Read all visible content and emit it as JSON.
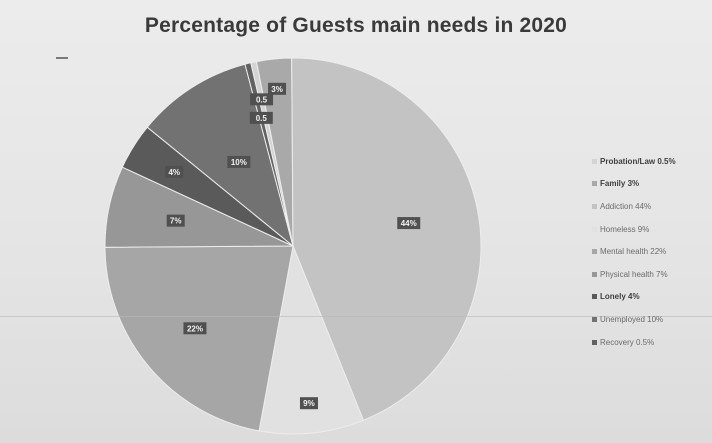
{
  "chart_data": {
    "type": "pie",
    "title": "Percentage of Guests main needs in 2020",
    "slices": [
      {
        "label": "Probation/Law 0.5%",
        "data_label": "0.5",
        "value": 0.5,
        "color": "#d4d4d4",
        "emphasis": true
      },
      {
        "label": "Family 3%",
        "data_label": "3%",
        "value": 3,
        "color": "#a9a9a9",
        "emphasis": true
      },
      {
        "label": "Addiction 44%",
        "data_label": "44%",
        "value": 44,
        "color": "#c3c3c3",
        "emphasis": false
      },
      {
        "label": "Homeless 9%",
        "data_label": "9%",
        "value": 9,
        "color": "#e1e1e1",
        "emphasis": false
      },
      {
        "label": "Mental health 22%",
        "data_label": "22%",
        "value": 22,
        "color": "#a6a6a6",
        "emphasis": false
      },
      {
        "label": "Physical health 7%",
        "data_label": "7%",
        "value": 7,
        "color": "#979797",
        "emphasis": false
      },
      {
        "label": "Lonely 4%",
        "data_label": "4%",
        "value": 4,
        "color": "#5a5a5a",
        "emphasis": true
      },
      {
        "label": "Unemployed 10%",
        "data_label": "10%",
        "value": 10,
        "color": "#727272",
        "emphasis": false
      },
      {
        "label": "Recovery 0.5%",
        "data_label": "0.5",
        "value": 0.5,
        "color": "#626262",
        "emphasis": false
      }
    ],
    "legend_position": "right",
    "label_box_color": "#505050",
    "label_text_color": "#f2f2f2"
  }
}
